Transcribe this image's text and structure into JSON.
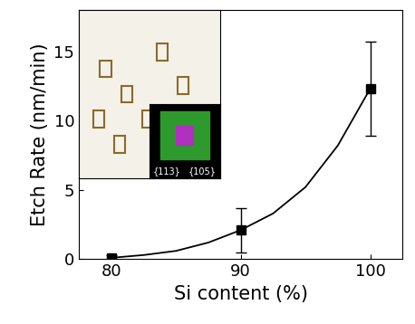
{
  "chart_data": {
    "type": "scatter",
    "x_label": "Si content (%)",
    "y_label": "Etch Rate (nm/min)",
    "x": [
      80,
      90,
      100
    ],
    "values": [
      0.1,
      2.1,
      12.3
    ],
    "errors": [
      0.2,
      1.6,
      3.4
    ],
    "color": "#000000",
    "marker": "square",
    "fit": {
      "x": [
        80,
        82.5,
        85,
        87.5,
        90,
        92.5,
        95,
        97.5,
        100
      ],
      "values": [
        0.1,
        0.3,
        0.6,
        1.2,
        2.1,
        3.3,
        5.2,
        8.2,
        12.3
      ]
    },
    "annotations": [
      "{113}",
      "{105}"
    ],
    "xlim": [
      77.5,
      102.5
    ],
    "xticks": [
      80,
      90,
      100
    ],
    "ylim": [
      0,
      18
    ],
    "yticks": [
      0,
      5,
      10,
      15
    ],
    "grid": false
  }
}
